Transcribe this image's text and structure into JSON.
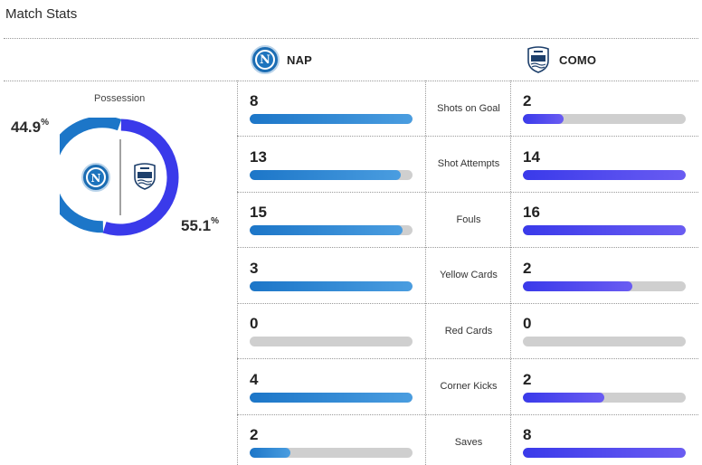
{
  "header": {
    "title": "Match Stats"
  },
  "teams": {
    "home": {
      "abbr": "NAP",
      "logo_icon": "napoli-crest-icon",
      "color": "#1c76c8"
    },
    "away": {
      "abbr": "COMO",
      "logo_icon": "como-crest-icon",
      "color": "#3a3aea"
    }
  },
  "possession": {
    "label": "Possession",
    "home": 44.9,
    "away": 55.1,
    "home_text": "44.9",
    "away_text": "55.1",
    "percent_sign": "%"
  },
  "stats": [
    {
      "label": "Shots on Goal",
      "home": 8,
      "away": 2,
      "home_fill": 1.0,
      "away_fill": 0.25
    },
    {
      "label": "Shot Attempts",
      "home": 13,
      "away": 14,
      "home_fill": 0.93,
      "away_fill": 1.0
    },
    {
      "label": "Fouls",
      "home": 15,
      "away": 16,
      "home_fill": 0.94,
      "away_fill": 1.0
    },
    {
      "label": "Yellow Cards",
      "home": 3,
      "away": 2,
      "home_fill": 1.0,
      "away_fill": 0.67
    },
    {
      "label": "Red Cards",
      "home": 0,
      "away": 0,
      "home_fill": 0.0,
      "away_fill": 0.0
    },
    {
      "label": "Corner Kicks",
      "home": 4,
      "away": 2,
      "home_fill": 1.0,
      "away_fill": 0.5
    },
    {
      "label": "Saves",
      "home": 2,
      "away": 8,
      "home_fill": 0.25,
      "away_fill": 1.0
    }
  ]
}
